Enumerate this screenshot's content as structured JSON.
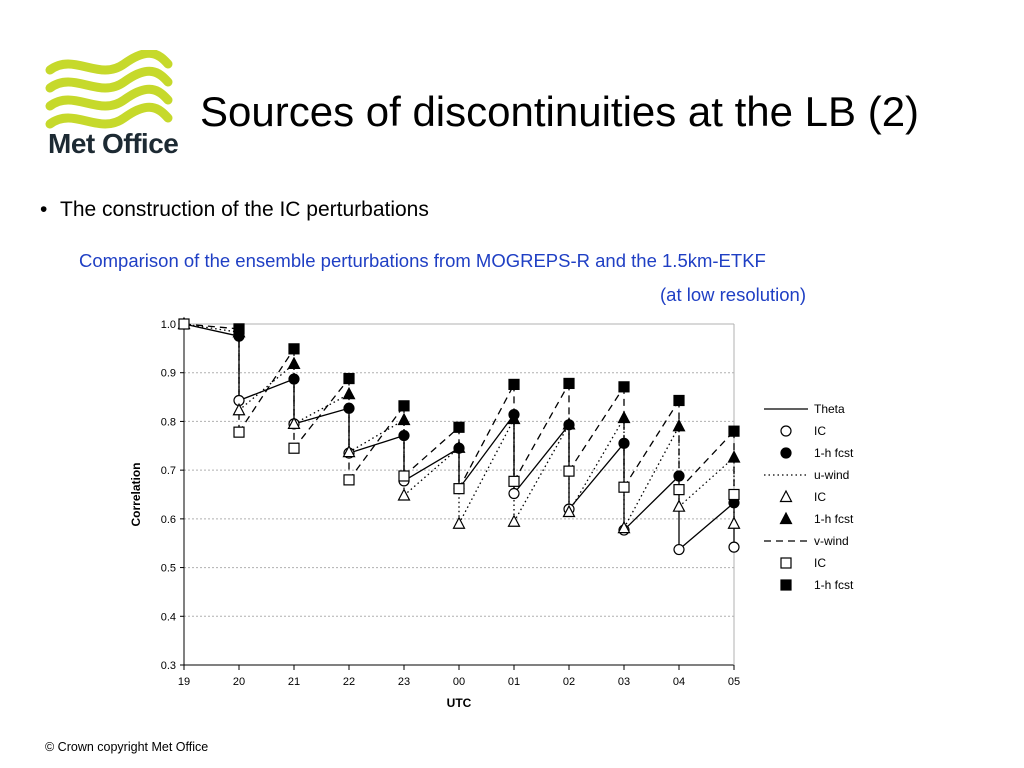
{
  "slide": {
    "title": "Sources of discontinuities at the LB (2)",
    "bullet": "The construction of the IC perturbations",
    "caption_line1": "Comparison of the ensemble perturbations from MOGREPS-R and the 1.5km-ETKF",
    "caption_line2": "(at low resolution)",
    "footer": "© Crown copyright   Met Office",
    "logo_text": "Met Office"
  },
  "colors": {
    "logo_green": "#c6d92b",
    "caption_blue": "#1f3fc4",
    "grid": "#b0b0b0"
  },
  "chart_data": {
    "type": "line",
    "xlabel": "UTC",
    "ylabel": "Correlation",
    "categories": [
      "19",
      "20",
      "21",
      "22",
      "23",
      "00",
      "01",
      "02",
      "03",
      "04",
      "05"
    ],
    "ylim": [
      0.3,
      1.0
    ],
    "yticks": [
      0.3,
      0.4,
      0.5,
      0.6,
      0.7,
      0.8,
      0.9,
      1.0
    ],
    "grid": "horizontal dotted",
    "legend_position": "right",
    "legend": [
      {
        "label": "Theta",
        "kind": "line",
        "dash": "solid"
      },
      {
        "label": "IC",
        "kind": "marker",
        "marker": "circle-open"
      },
      {
        "label": "1-h fcst",
        "kind": "marker",
        "marker": "circle-filled"
      },
      {
        "label": "u-wind",
        "kind": "line",
        "dash": "dotted"
      },
      {
        "label": "IC",
        "kind": "marker",
        "marker": "triangle-open"
      },
      {
        "label": "1-h fcst",
        "kind": "marker",
        "marker": "triangle-filled"
      },
      {
        "label": "v-wind",
        "kind": "line",
        "dash": "dashed"
      },
      {
        "label": "IC",
        "kind": "marker",
        "marker": "square-open"
      },
      {
        "label": "1-h fcst",
        "kind": "marker",
        "marker": "square-filled"
      }
    ],
    "series": [
      {
        "name": "Theta",
        "dash": "solid",
        "marker": "circle",
        "start": 1.0,
        "ic": [
          0.843,
          0.795,
          0.735,
          0.678,
          0.662,
          0.652,
          0.62,
          0.577,
          0.537,
          0.542
        ],
        "fcst": [
          0.975,
          0.887,
          0.827,
          0.771,
          0.745,
          0.814,
          0.793,
          0.755,
          0.688,
          0.633
        ]
      },
      {
        "name": "u-wind",
        "dash": "dotted",
        "marker": "triangle",
        "start": 1.0,
        "ic": [
          0.823,
          0.795,
          0.737,
          0.648,
          0.59,
          0.594,
          0.614,
          0.581,
          0.625,
          0.59
        ],
        "fcst": [
          0.983,
          0.918,
          0.856,
          0.803,
          0.746,
          0.805,
          0.794,
          0.807,
          0.79,
          0.726
        ]
      },
      {
        "name": "v-wind",
        "dash": "dashed",
        "marker": "square",
        "start": 1.0,
        "ic": [
          0.778,
          0.745,
          0.68,
          0.688,
          0.662,
          0.677,
          0.698,
          0.665,
          0.66,
          0.65
        ],
        "fcst": [
          0.99,
          0.949,
          0.888,
          0.832,
          0.788,
          0.876,
          0.878,
          0.871,
          0.843,
          0.78
        ]
      }
    ]
  }
}
